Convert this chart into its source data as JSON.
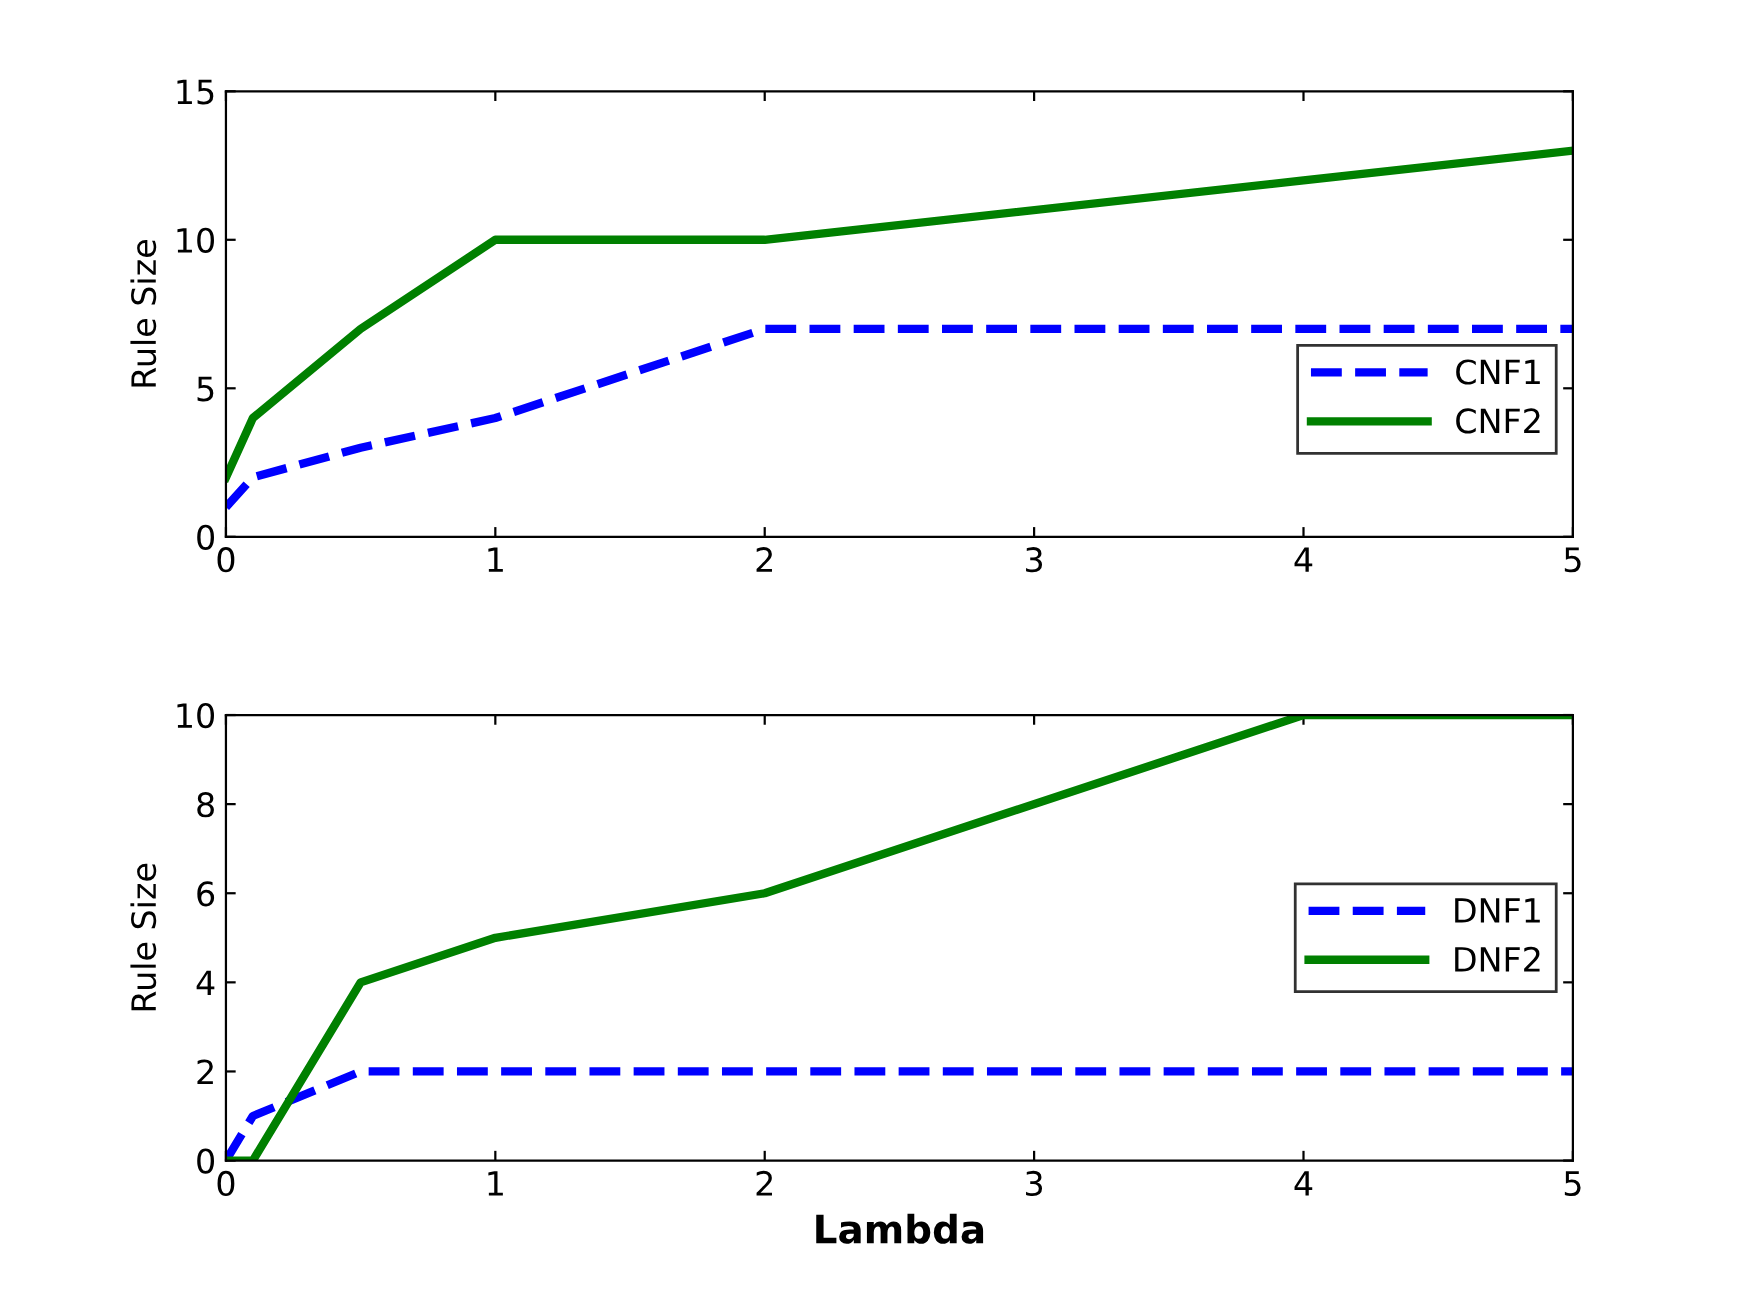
{
  "chart_data": [
    {
      "type": "line",
      "ylabel": "Rule Size",
      "x": [
        0,
        0.1,
        0.5,
        1,
        2,
        4,
        5
      ],
      "series": [
        {
          "name": "CNF1",
          "color": "#0000ff",
          "line_style": "dashed",
          "values": [
            1,
            2,
            3,
            4,
            7,
            7,
            7
          ]
        },
        {
          "name": "CNF2",
          "color": "#008000",
          "line_style": "solid",
          "values": [
            2,
            4,
            7,
            10,
            10,
            12,
            13
          ]
        }
      ],
      "xlim": [
        0,
        5
      ],
      "xticks": [
        0,
        1,
        2,
        3,
        4,
        5
      ],
      "ylim": [
        0,
        15
      ],
      "yticks": [
        0,
        5,
        10,
        15
      ],
      "legend": "lower right",
      "grid": false
    },
    {
      "type": "line",
      "ylabel": "Rule Size",
      "xlabel": "Lambda",
      "x": [
        0,
        0.1,
        0.5,
        1,
        2,
        4,
        5
      ],
      "series": [
        {
          "name": "DNF1",
          "color": "#0000ff",
          "line_style": "dashed",
          "values": [
            0,
            1,
            2,
            2,
            2,
            2,
            2
          ]
        },
        {
          "name": "DNF2",
          "color": "#008000",
          "line_style": "solid",
          "values": [
            0,
            0,
            4,
            5,
            6,
            10,
            10
          ]
        }
      ],
      "xlim": [
        0,
        5
      ],
      "xticks": [
        0,
        1,
        2,
        3,
        4,
        5
      ],
      "ylim": [
        0,
        10
      ],
      "yticks": [
        0,
        2,
        4,
        6,
        8,
        10
      ],
      "legend": "right",
      "grid": false
    }
  ]
}
